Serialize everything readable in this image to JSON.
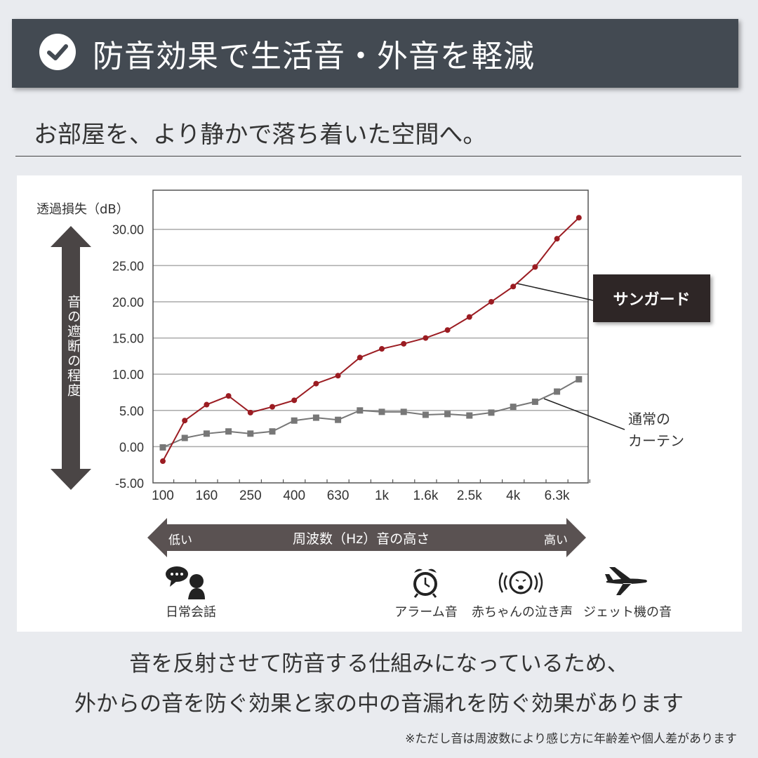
{
  "header": {
    "title": "防音効果で生活音・外音を軽減",
    "icon": "check-circle-icon"
  },
  "subtitle": "お部屋を、より静かで落ち着いた空間へ。",
  "chart_data": {
    "type": "line",
    "ylabel": "透過損失（dB）",
    "y_arrow_label": "音の遮断の程度",
    "ylim": [
      -5,
      35
    ],
    "yticks": [
      "30.00",
      "25.00",
      "20.00",
      "15.00",
      "10.00",
      "5.00",
      "0.00",
      "-5.00"
    ],
    "ytick_values": [
      30,
      25,
      20,
      15,
      10,
      5,
      0,
      -5
    ],
    "x": [
      "100",
      "125",
      "160",
      "200",
      "250",
      "315",
      "400",
      "500",
      "630",
      "800",
      "1k",
      "1.25k",
      "1.6k",
      "2k",
      "2.5k",
      "3.15k",
      "4k",
      "5k",
      "6.3k",
      "8k"
    ],
    "xtick_labels": [
      "100",
      "160",
      "250",
      "400",
      "630",
      "1k",
      "1.6k",
      "2.5k",
      "4k",
      "6.3k"
    ],
    "grid": true,
    "series": [
      {
        "name": "サンガード",
        "color": "#9b1c22",
        "marker": "circle",
        "values": [
          -2.0,
          3.6,
          5.8,
          7.0,
          4.7,
          5.5,
          6.4,
          8.7,
          9.8,
          12.3,
          13.5,
          14.2,
          15.0,
          16.1,
          17.9,
          20.0,
          22.1,
          24.8,
          28.7,
          31.6
        ]
      },
      {
        "name": "通常のカーテン",
        "color": "#777777",
        "marker": "square",
        "values": [
          -0.1,
          1.2,
          1.8,
          2.1,
          1.8,
          2.1,
          3.6,
          4.0,
          3.7,
          5.0,
          4.8,
          4.8,
          4.4,
          4.5,
          4.3,
          4.7,
          5.5,
          6.2,
          7.6,
          9.3
        ]
      }
    ],
    "legend_labels": {
      "sungard": "サンガード",
      "curtain_line1": "通常の",
      "curtain_line2": "カーテン"
    }
  },
  "freq_arrow": {
    "low": "低い",
    "center": "周波数（Hz）音の高さ",
    "high": "高い"
  },
  "sound_icons": [
    {
      "label": "日常会話",
      "icon": "conversation-icon"
    },
    {
      "label": "アラーム音",
      "icon": "alarm-clock-icon"
    },
    {
      "label": "赤ちゃんの泣き声",
      "icon": "crying-baby-icon"
    },
    {
      "label": "ジェット機の音",
      "icon": "airplane-icon"
    }
  ],
  "footer": {
    "line1": "音を反射させて防音する仕組みになっているため、",
    "line2": "外からの音を防ぐ効果と家の中の音漏れを防ぐ効果があります",
    "note": "※ただし音は周波数により感じ方に年齢差や個人差があります"
  }
}
